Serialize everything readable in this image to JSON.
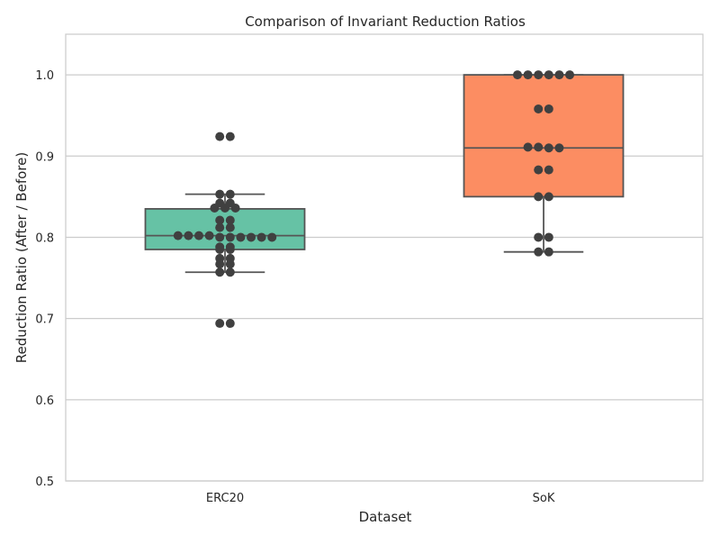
{
  "chart_data": {
    "type": "box",
    "title": "Comparison of Invariant Reduction Ratios",
    "xlabel": "Dataset",
    "ylabel": "Reduction Ratio (After / Before)",
    "ylim": [
      0.5,
      1.05
    ],
    "yticks": [
      0.5,
      0.6,
      0.7,
      0.8,
      0.9,
      1.0
    ],
    "ytick_labels": [
      "0.5",
      "0.6",
      "0.7",
      "0.8",
      "0.9",
      "1.0"
    ],
    "grid": "horizontal",
    "categories": [
      "ERC20",
      "SoK"
    ],
    "boxes": [
      {
        "category": "ERC20",
        "color": "#66c2a5",
        "q1": 0.785,
        "median": 0.802,
        "q3": 0.835,
        "whisker_low": 0.757,
        "whisker_high": 0.853,
        "points": [
          0.924,
          0.924,
          0.853,
          0.853,
          0.842,
          0.836,
          0.836,
          0.836,
          0.842,
          0.821,
          0.821,
          0.812,
          0.812,
          0.802,
          0.802,
          0.8,
          0.8,
          0.8,
          0.8,
          0.8,
          0.8,
          0.802,
          0.802,
          0.788,
          0.785,
          0.785,
          0.788,
          0.774,
          0.774,
          0.767,
          0.767,
          0.757,
          0.757,
          0.694,
          0.694
        ]
      },
      {
        "category": "SoK",
        "color": "#fc8d62",
        "q1": 0.85,
        "median": 0.91,
        "q3": 1.0,
        "whisker_low": 0.782,
        "whisker_high": 1.0,
        "points": [
          1.0,
          1.0,
          1.0,
          1.0,
          1.0,
          1.0,
          0.958,
          0.958,
          0.911,
          0.91,
          0.91,
          0.911,
          0.883,
          0.883,
          0.85,
          0.85,
          0.8,
          0.8,
          0.782,
          0.782
        ]
      }
    ]
  }
}
